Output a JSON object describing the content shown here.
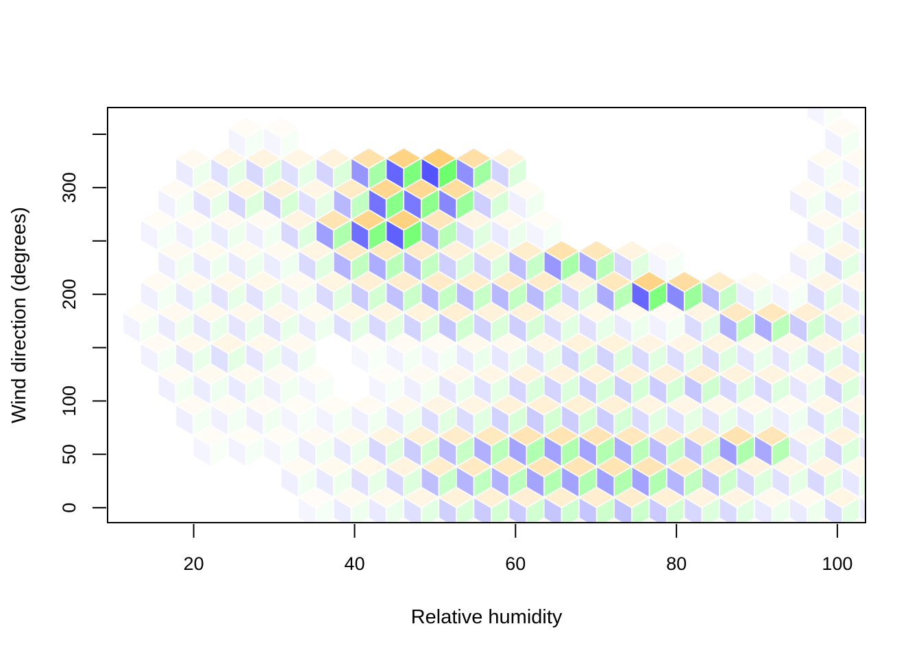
{
  "chart_data": {
    "type": "heatmap",
    "subtype": "hexbin",
    "title": "",
    "xlabel": "Relative humidity",
    "ylabel": "Wind direction (degrees)",
    "xlim": [
      9.3,
      103.5
    ],
    "ylim": [
      -14,
      375
    ],
    "x_ticks": [
      20,
      40,
      60,
      80,
      100
    ],
    "x_tick_labels": [
      "20",
      "40",
      "60",
      "80",
      "100"
    ],
    "y_ticks": [
      0,
      50,
      100,
      150,
      200,
      250,
      300,
      350
    ],
    "y_tick_labels": [
      "0",
      "50",
      "100",
      "",
      "200",
      "",
      "300",
      ""
    ],
    "grid": false,
    "legend": "none",
    "cell_style": "hexagon split into three rhombi, one per color",
    "colors": {
      "blue": "#0000ff",
      "green": "#00ff00",
      "orange": "#ffa500",
      "border": "#ffffff",
      "frame": "#000000"
    },
    "hex_grid": {
      "x_start": 13.4,
      "x_step": 4.36,
      "y_start": 0,
      "y_step": 28.9,
      "odd_row_x_offset": 2.18
    },
    "density_note": "intensity 0-1; peak near humidity 40-55, direction ~300; ridge from (60,240) to (95,170); band near direction 0-80",
    "cells": [
      {
        "x": 41.4,
        "y": 312,
        "d": 1.0
      },
      {
        "x": 45.8,
        "y": 312,
        "d": 1.0
      },
      {
        "x": 50.1,
        "y": 312,
        "d": 0.95
      },
      {
        "x": 54.5,
        "y": 312,
        "d": 0.9
      },
      {
        "x": 58.8,
        "y": 312,
        "d": 0.75
      },
      {
        "x": 37.0,
        "y": 312,
        "d": 0.8
      },
      {
        "x": 39.2,
        "y": 283,
        "d": 0.7
      },
      {
        "x": 43.6,
        "y": 283,
        "d": 0.75
      },
      {
        "x": 47.9,
        "y": 283,
        "d": 0.7
      },
      {
        "x": 52.3,
        "y": 283,
        "d": 0.6
      },
      {
        "x": 56.6,
        "y": 283,
        "d": 0.55
      },
      {
        "x": 63.2,
        "y": 312,
        "d": 0.6
      },
      {
        "x": 34.8,
        "y": 283,
        "d": 0.55
      },
      {
        "x": 41.4,
        "y": 254,
        "d": 0.6
      },
      {
        "x": 45.8,
        "y": 254,
        "d": 0.65
      },
      {
        "x": 50.1,
        "y": 254,
        "d": 0.55
      },
      {
        "x": 37.0,
        "y": 254,
        "d": 0.6
      },
      {
        "x": 65.4,
        "y": 226,
        "d": 0.7
      },
      {
        "x": 69.7,
        "y": 226,
        "d": 0.7
      },
      {
        "x": 74.1,
        "y": 226,
        "d": 0.6
      },
      {
        "x": 78.4,
        "y": 226,
        "d": 0.6
      },
      {
        "x": 82.8,
        "y": 226,
        "d": 0.55
      },
      {
        "x": 88.9,
        "y": 197,
        "d": 0.8
      },
      {
        "x": 91.1,
        "y": 168,
        "d": 0.75
      },
      {
        "x": 86.7,
        "y": 168,
        "d": 0.65
      },
      {
        "x": 95.4,
        "y": 168,
        "d": 0.5
      },
      {
        "x": 85.4,
        "y": 197,
        "d": 0.6
      },
      {
        "x": 87.1,
        "y": 58,
        "d": 0.6
      },
      {
        "x": 91.5,
        "y": 58,
        "d": 0.55
      }
    ]
  }
}
